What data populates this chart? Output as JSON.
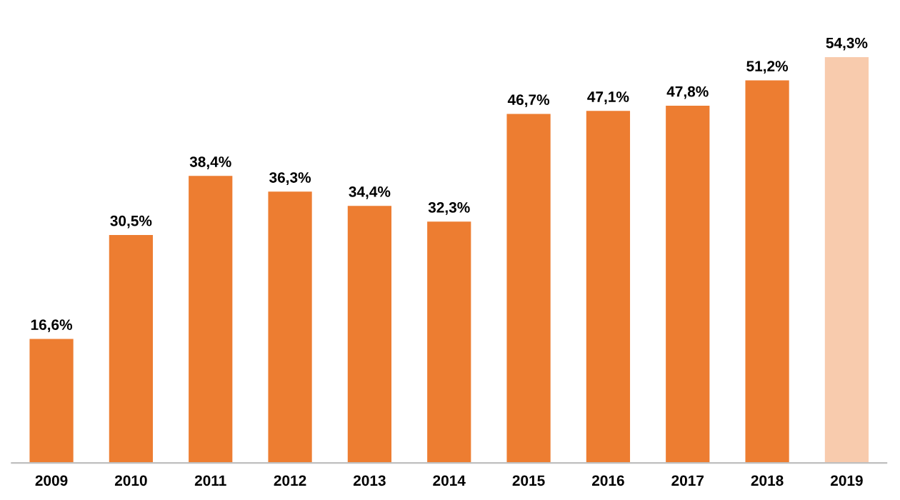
{
  "chart_data": {
    "type": "bar",
    "categories": [
      "2009",
      "2010",
      "2011",
      "2012",
      "2013",
      "2014",
      "2015",
      "2016",
      "2017",
      "2018",
      "2019"
    ],
    "values": [
      16.6,
      30.5,
      38.4,
      36.3,
      34.4,
      32.3,
      46.7,
      47.1,
      47.8,
      51.2,
      54.3
    ],
    "colors": [
      "#ed7d31",
      "#ed7d31",
      "#ed7d31",
      "#ed7d31",
      "#ed7d31",
      "#ed7d31",
      "#ed7d31",
      "#ed7d31",
      "#ed7d31",
      "#ed7d31",
      "#f8cbad"
    ],
    "value_labels": [
      "16,6%",
      "30,5%",
      "38,4%",
      "36,3%",
      "34,4%",
      "32,3%",
      "46,7%",
      "47,1%",
      "47,8%",
      "51,2%",
      "54,3%"
    ],
    "grid": false,
    "legend": false
  }
}
